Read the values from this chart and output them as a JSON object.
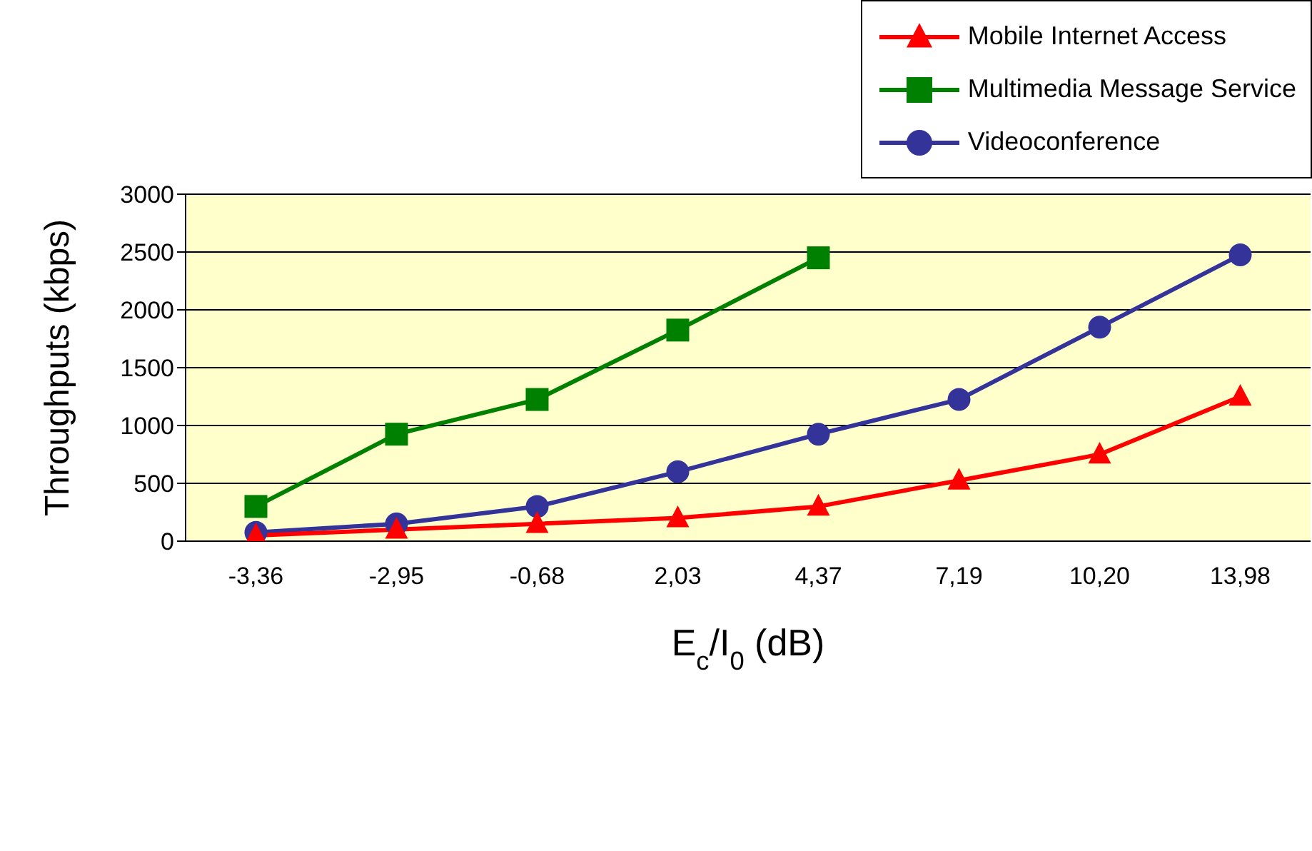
{
  "chart_data": {
    "type": "line",
    "xlabel": "E$_{c}$/I$_{0}$ (dB)",
    "ylabel": "Throughputs (kbps)",
    "categories": [
      "-3,36",
      "-2,95",
      "-0,68",
      "2,03",
      "4,37",
      "7,19",
      "10,20",
      "13,98"
    ],
    "series": [
      {
        "name": "Mobile Internet Access",
        "color": "#ff0000",
        "marker": "triangle",
        "values": [
          50,
          100,
          150,
          200,
          300,
          525,
          750,
          1250
        ]
      },
      {
        "name": "Multimedia Message Service",
        "color": "#008000",
        "marker": "square",
        "values": [
          300,
          925,
          1225,
          1825,
          2450,
          null,
          null,
          null
        ]
      },
      {
        "name": "Videoconference",
        "color": "#333399",
        "marker": "circle",
        "values": [
          75,
          150,
          300,
          600,
          925,
          1225,
          1850,
          2475
        ]
      }
    ],
    "ylim": [
      0,
      3000
    ],
    "yticks": [
      0,
      500,
      1000,
      1500,
      2000,
      2500,
      3000
    ],
    "grid": "y",
    "legend": "top right"
  }
}
